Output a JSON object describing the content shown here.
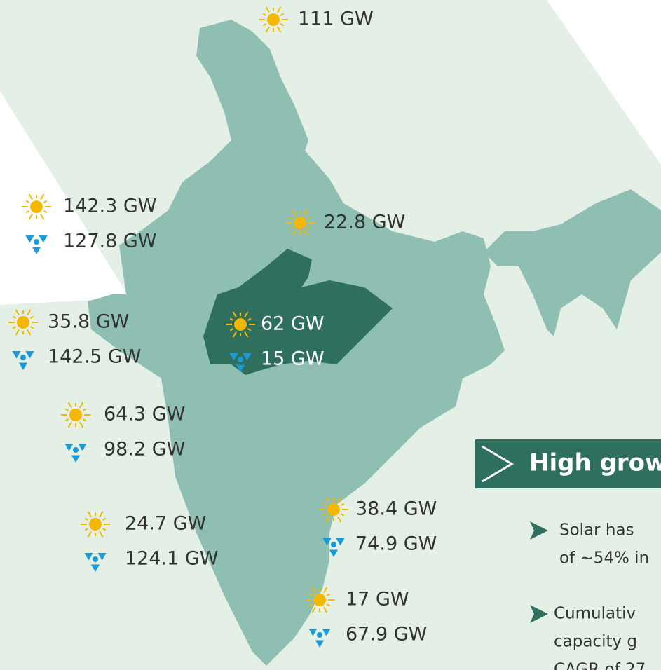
{
  "regions": [
    {
      "solar": "111 GW"
    },
    {
      "solar": "142.3 GW",
      "wind": "127.8 GW"
    },
    {
      "solar": "22.8 GW"
    },
    {
      "solar": "35.8 GW",
      "wind": "142.5 GW"
    },
    {
      "solar": "62 GW",
      "wind": "15 GW"
    },
    {
      "solar": "64.3 GW",
      "wind": "98.2 GW"
    },
    {
      "solar": "24.7 GW",
      "wind": "124.1 GW"
    },
    {
      "solar": "38.4 GW",
      "wind": "74.9 GW"
    },
    {
      "solar": "17 GW",
      "wind": "67.9 GW"
    }
  ],
  "panel": {
    "title": "High grow",
    "bullets": [
      [
        "Solar has",
        "of ~54% in"
      ],
      [
        "Cumulativ",
        "capacity g",
        "CAGR of 27"
      ]
    ]
  }
}
